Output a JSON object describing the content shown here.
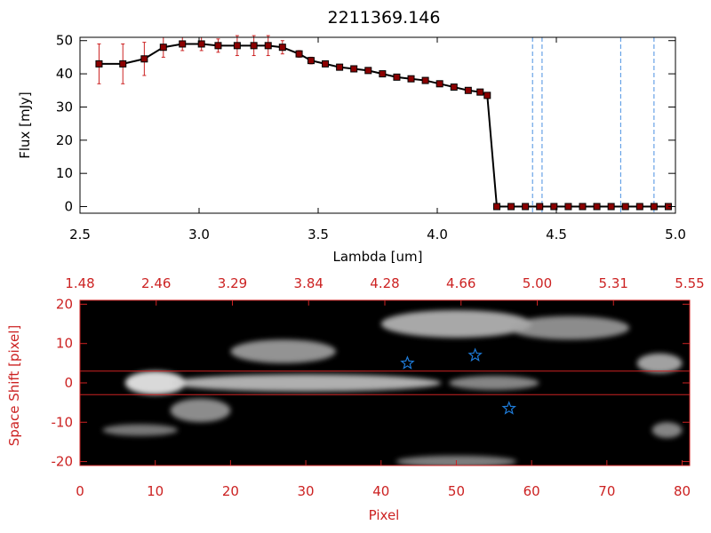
{
  "chart_data": [
    {
      "type": "line",
      "title": "2211369.146",
      "xlabel": "Lambda [um]",
      "ylabel": "Flux [mJy]",
      "xlim": [
        2.5,
        5.0
      ],
      "ylim": [
        -2,
        51
      ],
      "xticks": [
        "2.5",
        "3.0",
        "3.5",
        "4.0",
        "4.5",
        "5.0"
      ],
      "yticks": [
        "0",
        "10",
        "20",
        "30",
        "40",
        "50"
      ],
      "colors": {
        "line": "#000000",
        "marker": "#8b0000",
        "errorbar": "#cc2222",
        "vline": "#4a90e2"
      },
      "x": [
        2.58,
        2.68,
        2.77,
        2.85,
        2.93,
        3.01,
        3.08,
        3.16,
        3.23,
        3.29,
        3.35,
        3.42,
        3.47,
        3.53,
        3.59,
        3.65,
        3.71,
        3.77,
        3.83,
        3.89,
        3.95,
        4.01,
        4.07,
        4.13,
        4.18,
        4.21,
        4.25,
        4.31,
        4.37,
        4.43,
        4.49,
        4.55,
        4.61,
        4.67,
        4.73,
        4.79,
        4.85,
        4.91,
        4.97
      ],
      "y": [
        43,
        43,
        44.5,
        48,
        49,
        49,
        48.5,
        48.5,
        48.5,
        48.5,
        48,
        46,
        44,
        43,
        42,
        41.5,
        41,
        40,
        39,
        38.5,
        38,
        37,
        36,
        35,
        34.5,
        33.5,
        0,
        0,
        0,
        0,
        0,
        0,
        0,
        0,
        0,
        0,
        0,
        0,
        0
      ],
      "yerr": [
        6,
        6,
        5,
        3,
        2,
        2,
        2,
        3,
        3,
        3,
        2,
        1,
        1,
        0,
        0,
        0,
        0,
        0,
        0,
        0,
        0,
        0,
        0,
        0,
        0,
        0,
        0,
        0,
        0,
        0,
        0,
        0,
        0,
        0,
        0,
        0,
        0,
        0,
        0
      ],
      "vlines": [
        4.4,
        4.44,
        4.77,
        4.91
      ]
    },
    {
      "type": "heatmap",
      "xlabel": "Pixel",
      "ylabel": "Space Shift [pixel]",
      "xlim": [
        0,
        81
      ],
      "ylim": [
        -21,
        21
      ],
      "xticks": [
        "0",
        "10",
        "20",
        "30",
        "40",
        "50",
        "60",
        "70",
        "80"
      ],
      "yticks": [
        "-20",
        "-10",
        "0",
        "10",
        "20"
      ],
      "top_axis_ticks": [
        "1.48",
        "2.46",
        "3.29",
        "3.84",
        "4.28",
        "4.66",
        "5.00",
        "5.31",
        "5.55"
      ],
      "colors": {
        "axis": "#cc2222",
        "background": "#000000",
        "star": "#1e7bd8",
        "hline": "#cc2222"
      },
      "hlines": [
        3,
        -3
      ],
      "stars": [
        {
          "pixel": 43.5,
          "shift": 5
        },
        {
          "pixel": 52.5,
          "shift": 7
        },
        {
          "pixel": 57,
          "shift": -6.5
        }
      ],
      "blobs": [
        {
          "pixel": 10,
          "shift": 0,
          "spread_pixel": 4,
          "spread_shift": 3,
          "intensity": 1.0
        },
        {
          "pixel": 30,
          "shift": 0,
          "spread_pixel": 18,
          "spread_shift": 2.2,
          "intensity": 0.7
        },
        {
          "pixel": 55,
          "shift": 0,
          "spread_pixel": 6,
          "spread_shift": 1.8,
          "intensity": 0.4
        },
        {
          "pixel": 50,
          "shift": 15,
          "spread_pixel": 10,
          "spread_shift": 3.5,
          "intensity": 0.65
        },
        {
          "pixel": 65,
          "shift": 14,
          "spread_pixel": 8,
          "spread_shift": 3,
          "intensity": 0.45
        },
        {
          "pixel": 27,
          "shift": 8,
          "spread_pixel": 7,
          "spread_shift": 3,
          "intensity": 0.5
        },
        {
          "pixel": 16,
          "shift": -7,
          "spread_pixel": 4,
          "spread_shift": 3,
          "intensity": 0.45
        },
        {
          "pixel": 77,
          "shift": 5,
          "spread_pixel": 3,
          "spread_shift": 2.5,
          "intensity": 0.6
        },
        {
          "pixel": 78,
          "shift": -12,
          "spread_pixel": 2,
          "spread_shift": 2,
          "intensity": 0.4
        },
        {
          "pixel": 8,
          "shift": -12,
          "spread_pixel": 5,
          "spread_shift": 1.5,
          "intensity": 0.3
        },
        {
          "pixel": 50,
          "shift": -20,
          "spread_pixel": 8,
          "spread_shift": 1.5,
          "intensity": 0.35
        }
      ]
    }
  ]
}
